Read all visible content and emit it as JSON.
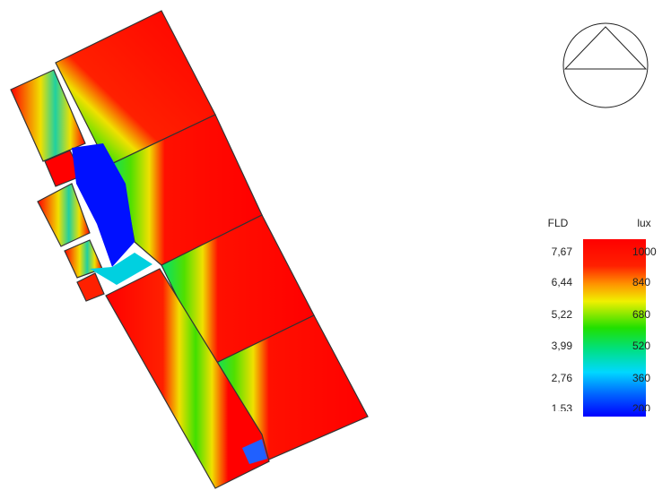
{
  "legend": {
    "fld_header": "FLD",
    "lux_header": "lux",
    "fld_labels": [
      "7,67",
      "6,44",
      "5,22",
      "3,99",
      "2,76",
      "1,53"
    ],
    "lux_labels": [
      1000,
      840,
      680,
      520,
      360,
      200
    ]
  }
}
